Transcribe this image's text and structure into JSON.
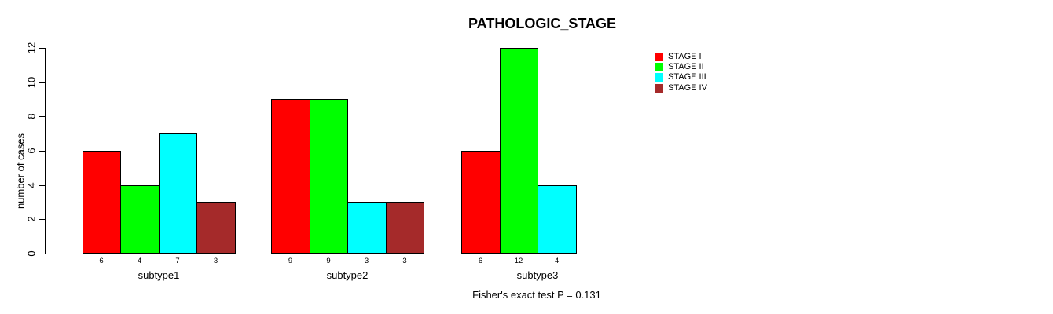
{
  "chart_data": {
    "type": "bar",
    "title": "PATHOLOGIC_STAGE",
    "xlabel": "",
    "ylabel": "number of cases",
    "ylim": [
      0,
      12
    ],
    "yticks": [
      0,
      2,
      4,
      6,
      8,
      10,
      12
    ],
    "categories": [
      "subtype1",
      "subtype2",
      "subtype3"
    ],
    "series": [
      {
        "name": "STAGE I",
        "color": "#ff0000",
        "values": [
          6,
          9,
          6
        ]
      },
      {
        "name": "STAGE II",
        "color": "#00ff00",
        "values": [
          4,
          9,
          12
        ]
      },
      {
        "name": "STAGE III",
        "color": "#00ffff",
        "values": [
          7,
          3,
          4
        ]
      },
      {
        "name": "STAGE IV",
        "color": "#a52a2a",
        "values": [
          3,
          3,
          0
        ]
      }
    ],
    "bar_value_labels_shown": true,
    "legend_position": "top-right",
    "legend_entries": [
      "STAGE I",
      "STAGE II",
      "STAGE III",
      "STAGE IV"
    ],
    "grid": false,
    "annotation": "Fisher's exact test P = 0.131"
  }
}
